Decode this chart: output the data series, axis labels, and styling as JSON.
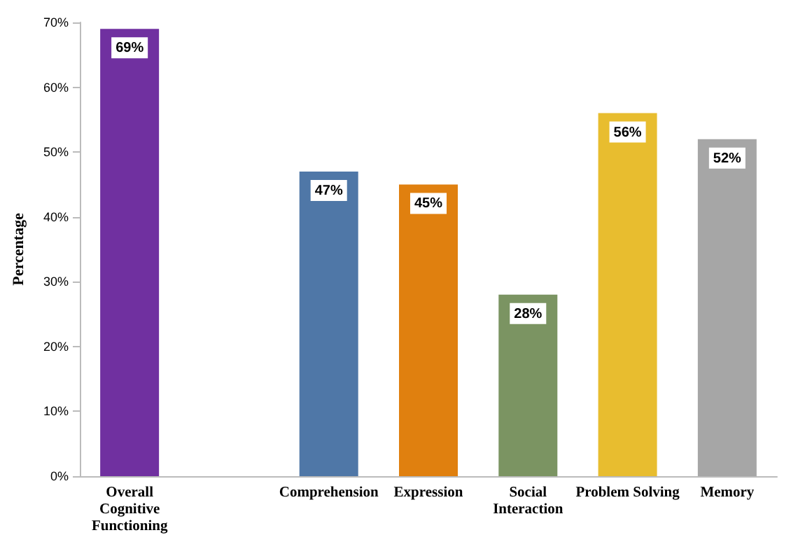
{
  "chart_data": {
    "type": "bar",
    "ylabel": "Percentage",
    "categories": [
      "Overall\nCognitive\nFunctioning",
      null,
      "Comprehension",
      "Expression",
      "Social\nInteraction",
      "Problem Solving",
      "Memory"
    ],
    "values": [
      69,
      null,
      47,
      45,
      28,
      56,
      52
    ],
    "colors": [
      "#7030a0",
      "#ffffff",
      "#4f77a7",
      "#e0800f",
      "#7b9462",
      "#e8bd2f",
      "#a6a6a6"
    ],
    "value_labels": [
      "69%",
      null,
      "47%",
      "45%",
      "28%",
      "56%",
      "52%"
    ],
    "ylim": [
      0,
      70
    ],
    "yticks": [
      {
        "value": 0,
        "label": "0%"
      },
      {
        "value": 10,
        "label": "10%"
      },
      {
        "value": 20,
        "label": "20%"
      },
      {
        "value": 30,
        "label": "30%"
      },
      {
        "value": 40,
        "label": "40%"
      },
      {
        "value": 50,
        "label": "50%"
      },
      {
        "value": 60,
        "label": "60%"
      },
      {
        "value": 70,
        "label": "70%"
      }
    ],
    "grid": false
  }
}
